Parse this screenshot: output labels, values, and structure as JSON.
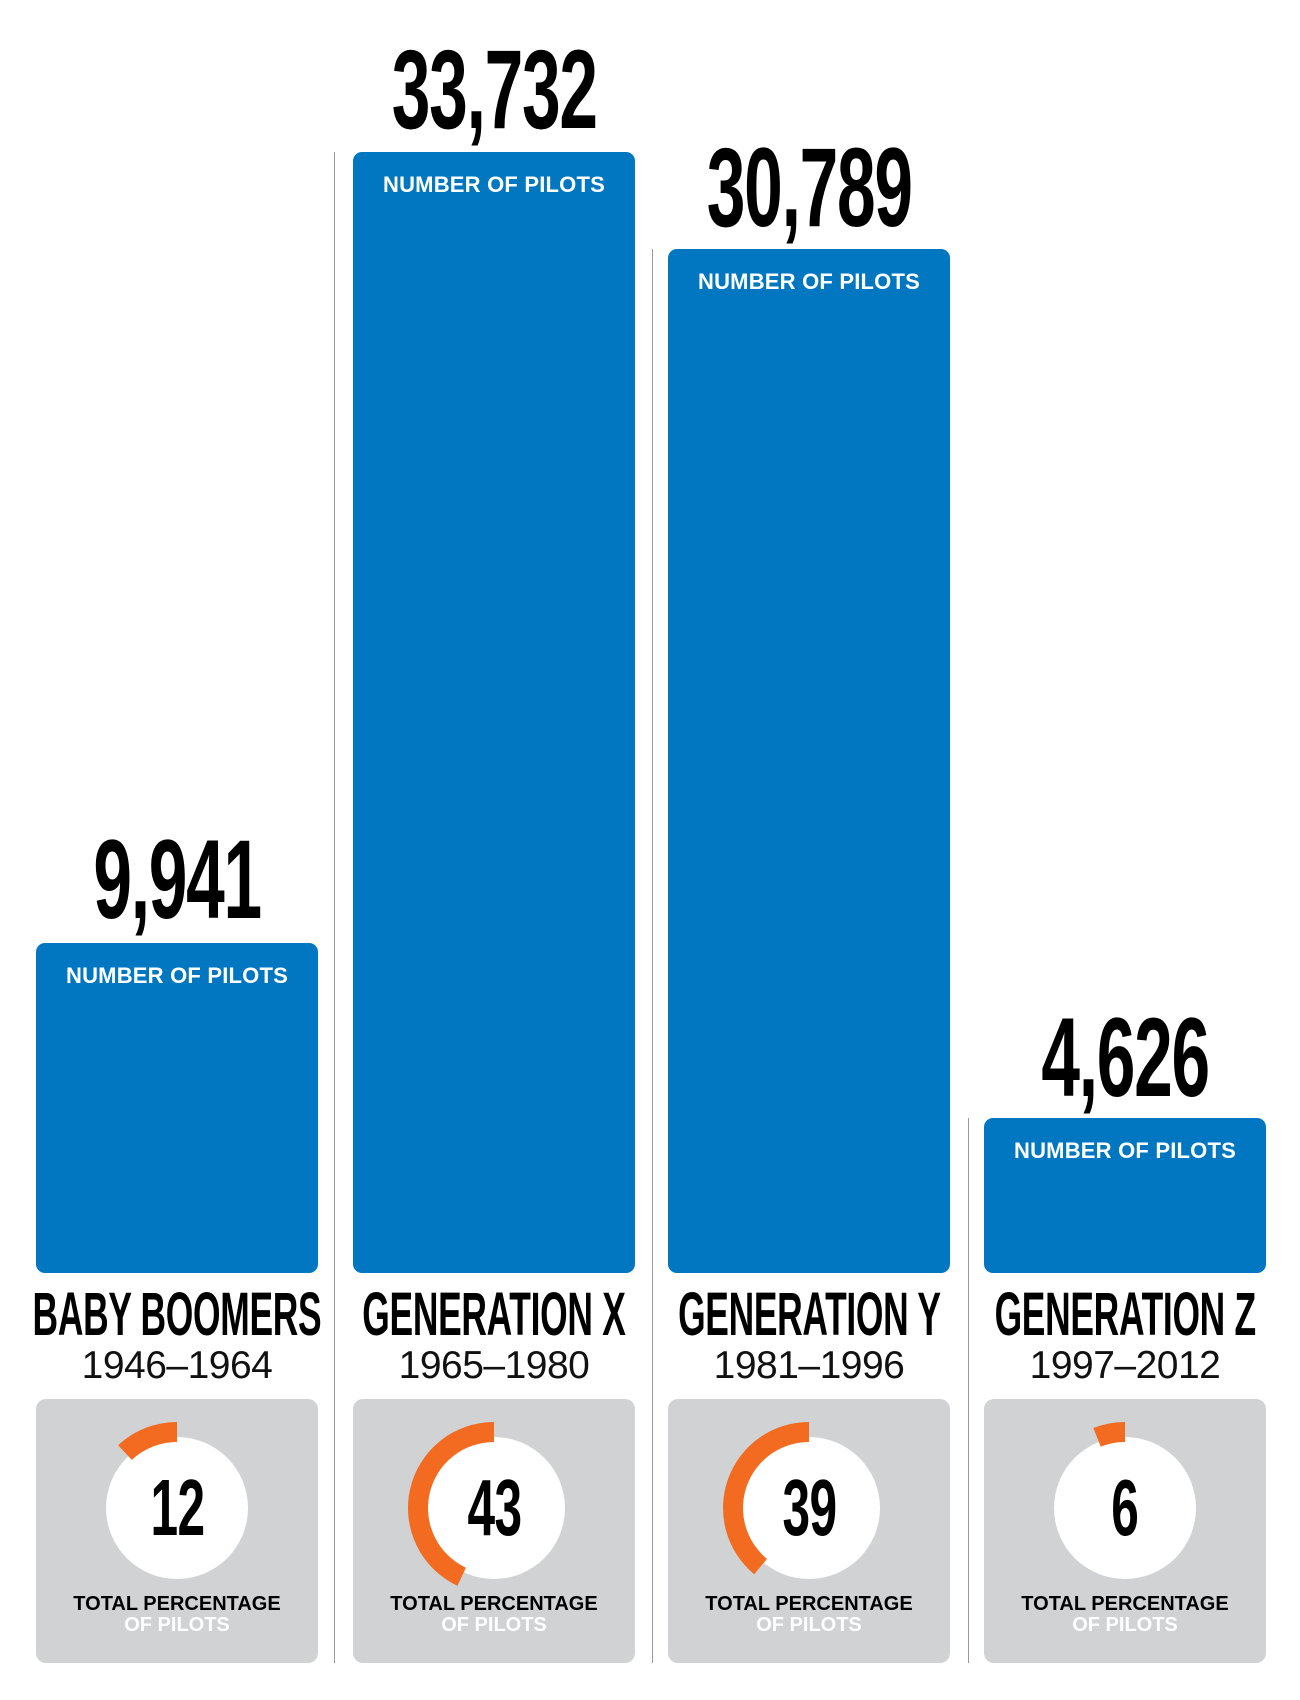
{
  "colors": {
    "bar": "#0077C0",
    "panel": "#D1D2D4",
    "arc": "#F26B21",
    "circle": "#FFFFFF",
    "divider": "#9A9A9A"
  },
  "generations": [
    {
      "name": "BABY BOOMERS",
      "years": "1946–1964",
      "pilots_display": "9,941",
      "pilots": 9941,
      "bar_label": "NUMBER OF PILOTS",
      "percent": 12,
      "percent_display": "12",
      "panel_line1": "TOTAL PERCENTAGE",
      "panel_line2": "OF PILOTS"
    },
    {
      "name": "GENERATION X",
      "years": "1965–1980",
      "pilots_display": "33,732",
      "pilots": 33732,
      "bar_label": "NUMBER OF PILOTS",
      "percent": 43,
      "percent_display": "43",
      "panel_line1": "TOTAL PERCENTAGE",
      "panel_line2": "OF PILOTS"
    },
    {
      "name": "GENERATION Y",
      "years": "1981–1996",
      "pilots_display": "30,789",
      "pilots": 30789,
      "bar_label": "NUMBER OF PILOTS",
      "percent": 39,
      "percent_display": "39",
      "panel_line1": "TOTAL PERCENTAGE",
      "panel_line2": "OF PILOTS"
    },
    {
      "name": "GENERATION Z",
      "years": "1997–2012",
      "pilots_display": "4,626",
      "pilots": 4626,
      "bar_label": "NUMBER OF PILOTS",
      "percent": 6,
      "percent_display": "6",
      "panel_line1": "TOTAL PERCENTAGE",
      "panel_line2": "OF PILOTS"
    }
  ],
  "chart_data": [
    {
      "type": "bar",
      "title": "",
      "categories": [
        "Baby Boomers (1946–1964)",
        "Generation X (1965–1980)",
        "Generation Y (1981–1996)",
        "Generation Z (1997–2012)"
      ],
      "values": [
        9941,
        33732,
        30789,
        4626
      ],
      "bar_label": "NUMBER OF PILOTS",
      "xlabel": "",
      "ylabel": "Number of pilots",
      "ylim": [
        0,
        33732
      ],
      "grid": false,
      "legend": null
    },
    {
      "type": "pie",
      "subtype": "donut-set",
      "categories": [
        "Baby Boomers",
        "Generation X",
        "Generation Y",
        "Generation Z"
      ],
      "values": [
        12,
        43,
        39,
        6
      ],
      "label": "TOTAL PERCENTAGE OF PILOTS",
      "unit": "%"
    }
  ]
}
